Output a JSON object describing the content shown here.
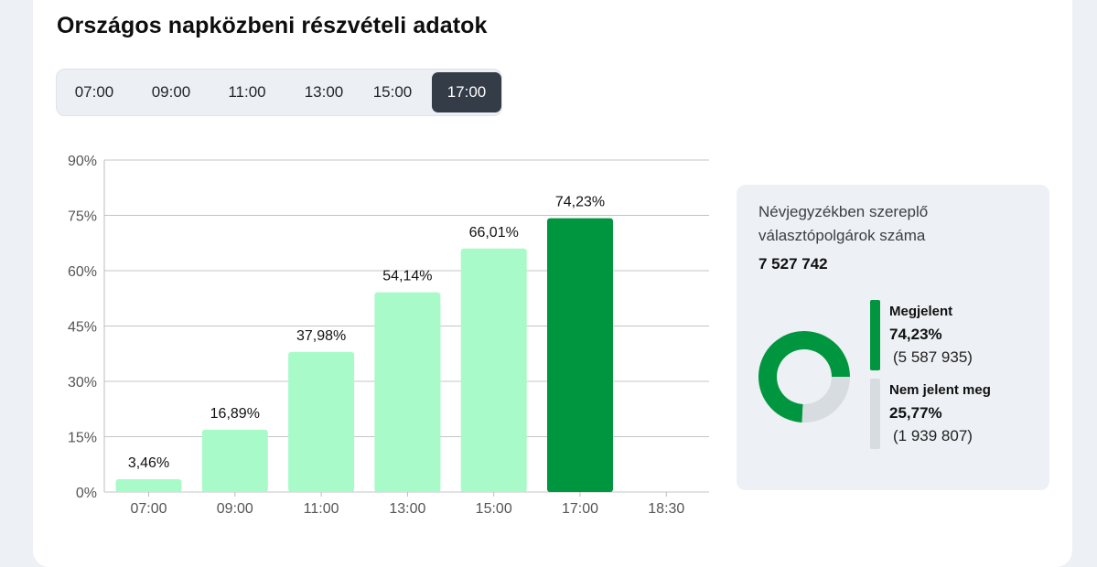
{
  "title": "Országos napközbeni részvételi adatok",
  "tabs": [
    {
      "label": "07:00",
      "active": false
    },
    {
      "label": "09:00",
      "active": false
    },
    {
      "label": "11:00",
      "active": false
    },
    {
      "label": "13:00",
      "active": false
    },
    {
      "label": "15:00",
      "active": false
    },
    {
      "label": "17:00",
      "active": true
    }
  ],
  "colors": {
    "bar_light": "#a8fbc8",
    "bar_active": "#00963f",
    "donut_absent": "#d6dcdf",
    "grid": "#c4c4c4",
    "tab_active_bg": "#343c48"
  },
  "chart_data": {
    "type": "bar",
    "categories": [
      "07:00",
      "09:00",
      "11:00",
      "13:00",
      "15:00",
      "17:00",
      "18:30"
    ],
    "values": [
      3.46,
      16.89,
      37.98,
      54.14,
      66.01,
      74.23,
      null
    ],
    "value_labels": [
      "3,46%",
      "16,89%",
      "37,98%",
      "54,14%",
      "66,01%",
      "74,23%",
      ""
    ],
    "highlight_index": 5,
    "yticks": [
      0,
      15,
      30,
      45,
      60,
      75,
      90
    ],
    "ytick_labels": [
      "0%",
      "15%",
      "30%",
      "45%",
      "60%",
      "75%",
      "90%"
    ],
    "ylim": [
      0,
      90
    ],
    "grid": true,
    "title": "",
    "xlabel": "",
    "ylabel": ""
  },
  "panel": {
    "label": "Névjegyzékben szereplő választópolgárok száma",
    "total": "7 527 742",
    "donut": {
      "type": "pie",
      "values": [
        74.23,
        25.77
      ]
    },
    "legend": [
      {
        "name": "Megjelent",
        "percent": "74,23%",
        "count": "(5 587 935)"
      },
      {
        "name": "Nem jelent meg",
        "percent": "25,77%",
        "count": "(1 939 807)"
      }
    ]
  }
}
